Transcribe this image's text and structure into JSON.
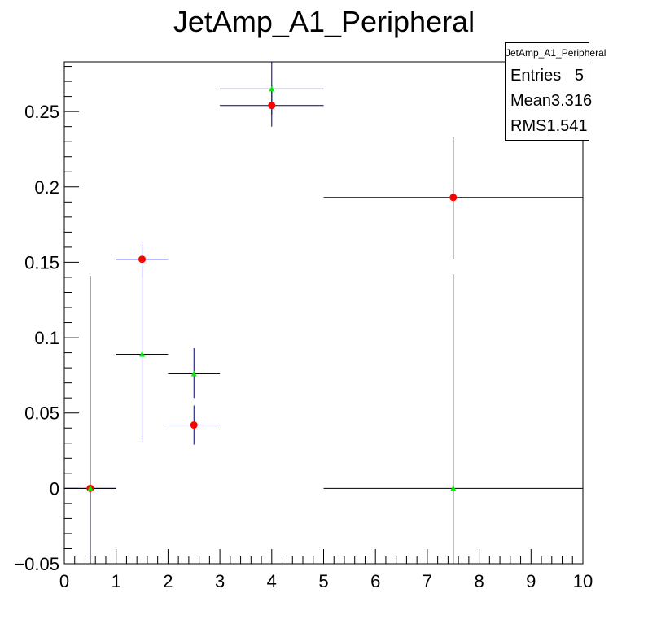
{
  "chart_data": {
    "type": "scatter",
    "title": "JetAmp_A1_Peripheral",
    "xlabel": "",
    "ylabel": "",
    "xlim": [
      0,
      10
    ],
    "ylim": [
      -0.05,
      0.283
    ],
    "x_ticks": [
      0,
      1,
      2,
      3,
      4,
      5,
      6,
      7,
      8,
      9,
      10
    ],
    "x_tick_labels": [
      "0",
      "1",
      "2",
      "3",
      "4",
      "5",
      "6",
      "7",
      "8",
      "9",
      "10"
    ],
    "y_ticks": [
      -0.05,
      0,
      0.05,
      0.1,
      0.15,
      0.2,
      0.25
    ],
    "y_tick_labels": [
      "−0.05",
      "0",
      "0.05",
      "0.1",
      "0.15",
      "0.2",
      "0.25"
    ],
    "series": [
      {
        "name": "red circles",
        "color": "#ff0000",
        "marker": "circle",
        "points": [
          {
            "x": 0.5,
            "y": 0.0,
            "xlo": 0,
            "xhi": 1,
            "ylo": -0.05,
            "yhi": 0.0,
            "barColor": "#000066"
          },
          {
            "x": 1.5,
            "y": 0.152,
            "xlo": 1,
            "xhi": 2,
            "ylo": 0.14,
            "yhi": 0.164,
            "barColor": "#000066"
          },
          {
            "x": 2.5,
            "y": 0.042,
            "xlo": 2,
            "xhi": 3,
            "ylo": 0.029,
            "yhi": 0.055,
            "barColor": "#000066"
          },
          {
            "x": 4.0,
            "y": 0.254,
            "xlo": 3,
            "xhi": 5,
            "ylo": 0.24,
            "yhi": 0.268,
            "barColor": "#000066"
          },
          {
            "x": 7.5,
            "y": 0.193,
            "xlo": 5,
            "xhi": 10,
            "ylo": 0.152,
            "yhi": 0.233,
            "barColor": "#000000"
          }
        ]
      },
      {
        "name": "green triangles",
        "color": "#00ee00",
        "marker": "triangle",
        "points": [
          {
            "x": 0.5,
            "y": 0.0,
            "xlo": 0,
            "xhi": 1,
            "ylo": -0.05,
            "yhi": 0.141,
            "barColor": "#000000"
          },
          {
            "x": 1.5,
            "y": 0.089,
            "xlo": 1,
            "xhi": 2,
            "ylo": 0.031,
            "yhi": 0.147,
            "barColor": "#000066"
          },
          {
            "x": 2.5,
            "y": 0.076,
            "xlo": 2,
            "xhi": 3,
            "ylo": 0.06,
            "yhi": 0.093,
            "barColor": "#000066"
          },
          {
            "x": 4.0,
            "y": 0.265,
            "xlo": 3,
            "xhi": 5,
            "ylo": 0.248,
            "yhi": 0.283,
            "barColor": "#000066"
          },
          {
            "x": 7.5,
            "y": 0.0,
            "xlo": 5,
            "xhi": 10,
            "ylo": -0.05,
            "yhi": 0.142,
            "barColor": "#000000"
          }
        ]
      }
    ],
    "legend_position": "top-right"
  },
  "stats": {
    "header": "JetAmp_A1_Peripheral",
    "entries_label": "Entries",
    "entries_value": "5",
    "mean_label": "Mean",
    "mean_value": "3.316",
    "rms_label": "RMS",
    "rms_value": "1.541"
  }
}
